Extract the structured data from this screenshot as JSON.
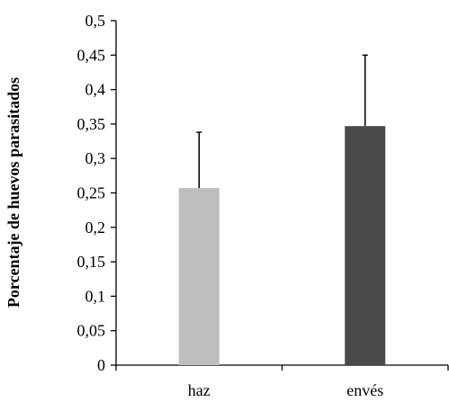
{
  "chart_data": {
    "type": "bar",
    "title": "",
    "xlabel": "",
    "ylabel": "Porcentaje de huevos  parasitados",
    "categories": [
      "haz",
      "envés"
    ],
    "values": [
      0.257,
      0.347
    ],
    "error_upper": [
      0.338,
      0.45
    ],
    "bar_colors": [
      "#bebebe",
      "#4a4a4c"
    ],
    "ylim": [
      0,
      0.5
    ],
    "yticks": [
      0,
      0.05,
      0.1,
      0.15,
      0.2,
      0.25,
      0.3,
      0.35,
      0.4,
      0.45,
      0.5
    ],
    "ytick_labels": [
      "0",
      "0,05",
      "0,1",
      "0,15",
      "0,2",
      "0,25",
      "0,3",
      "0,35",
      "0,4",
      "0,45",
      "0,5"
    ],
    "grid": false,
    "legend": "none"
  }
}
